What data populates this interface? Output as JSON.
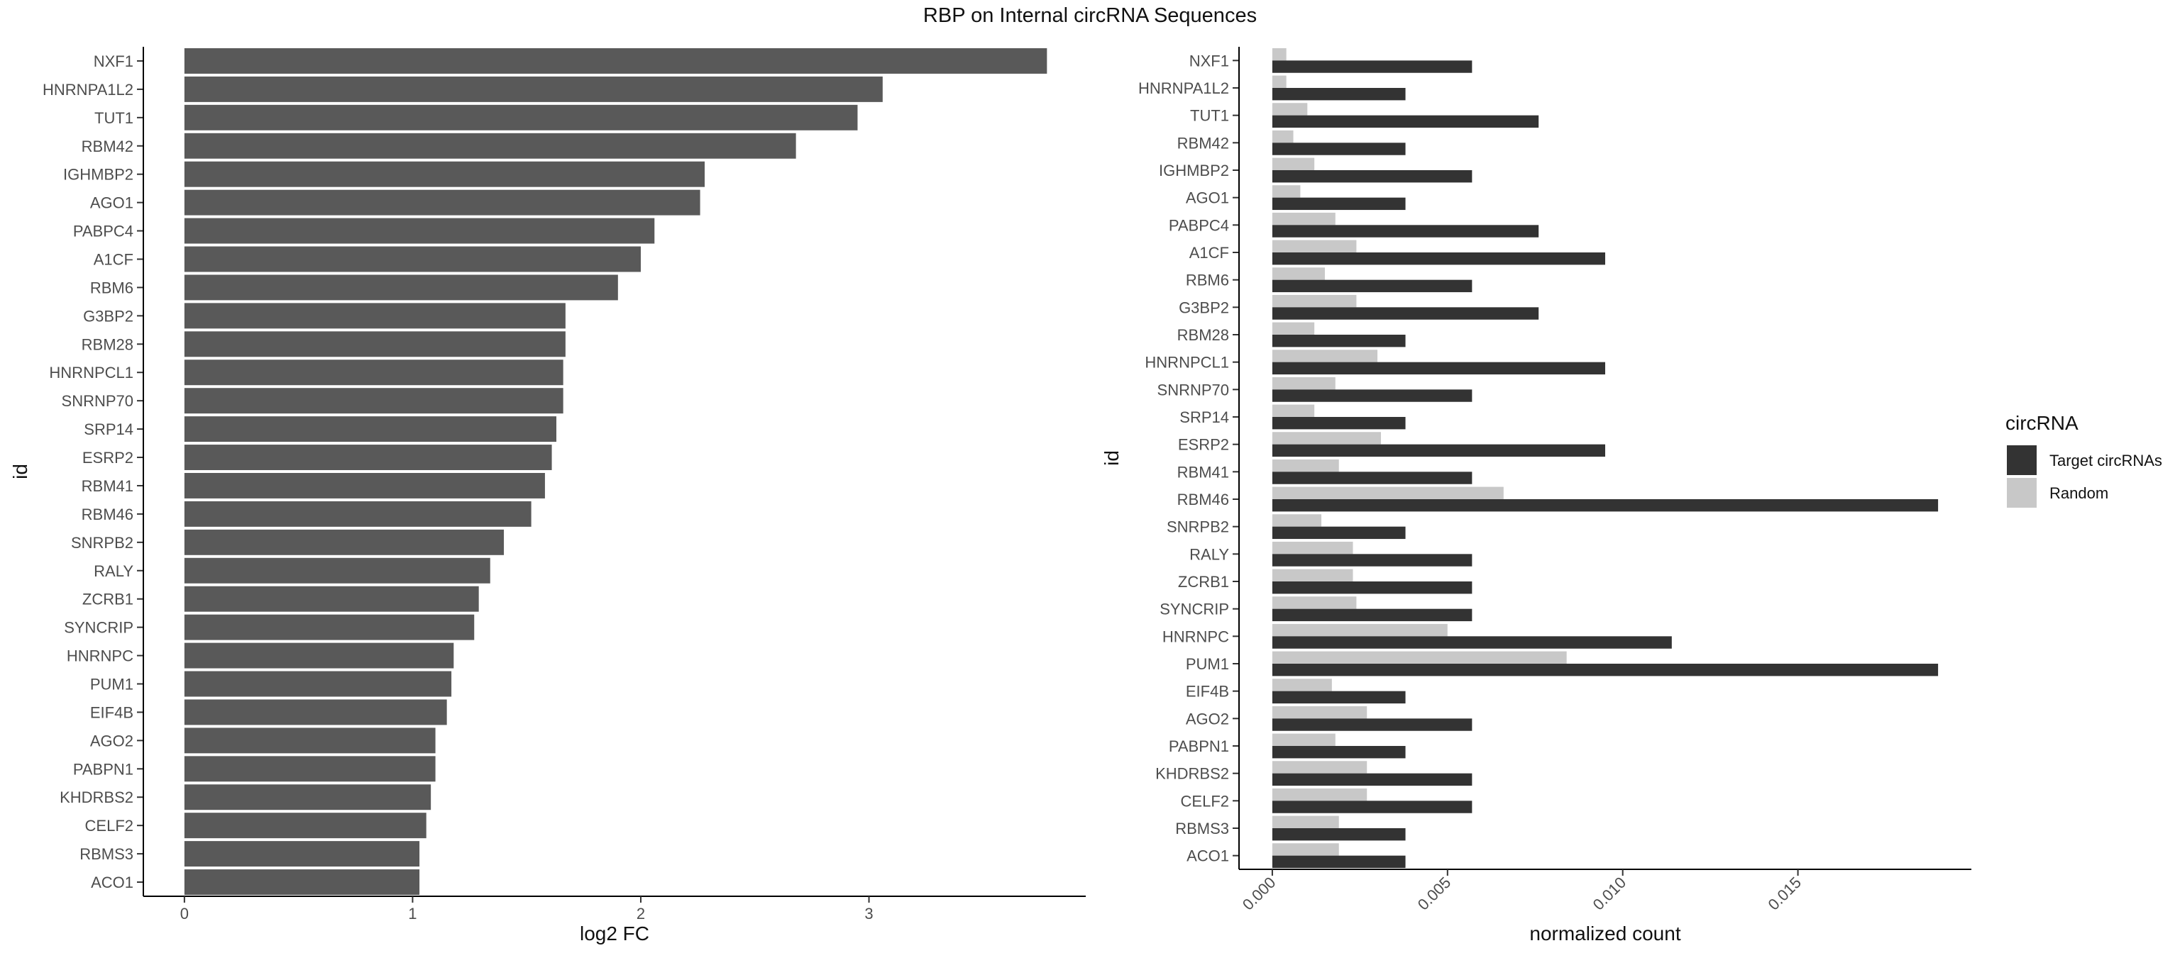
{
  "chart_data": [
    {
      "type": "bar",
      "orientation": "horizontal",
      "title": "RBP on Internal circRNA Sequences",
      "xlabel": "log2 FC",
      "ylabel": "id",
      "xlim": [
        -0.18,
        3.95
      ],
      "xticks": [
        0,
        1,
        2,
        3
      ],
      "xtick_labels": [
        "0",
        "1",
        "2",
        "3"
      ],
      "grid": false,
      "bar_color": "#595959",
      "categories": [
        "NXF1",
        "HNRNPA1L2",
        "TUT1",
        "RBM42",
        "IGHMBP2",
        "AGO1",
        "PABPC4",
        "A1CF",
        "RBM6",
        "G3BP2",
        "RBM28",
        "HNRNPCL1",
        "SNRNP70",
        "SRP14",
        "ESRP2",
        "RBM41",
        "RBM46",
        "SNRPB2",
        "RALY",
        "ZCRB1",
        "SYNCRIP",
        "HNRNPC",
        "PUM1",
        "EIF4B",
        "AGO2",
        "PABPN1",
        "KHDRBS2",
        "CELF2",
        "RBMS3",
        "ACO1"
      ],
      "values": [
        3.78,
        3.06,
        2.95,
        2.68,
        2.28,
        2.26,
        2.06,
        2.0,
        1.9,
        1.67,
        1.67,
        1.66,
        1.66,
        1.63,
        1.61,
        1.58,
        1.52,
        1.4,
        1.34,
        1.29,
        1.27,
        1.18,
        1.17,
        1.15,
        1.1,
        1.1,
        1.08,
        1.06,
        1.03,
        1.03
      ]
    },
    {
      "type": "bar",
      "orientation": "horizontal",
      "grouped": true,
      "xlabel": "normalized count",
      "ylabel": "id",
      "xlim": [
        -0.00095,
        0.01995
      ],
      "xticks": [
        0,
        0.005,
        0.01,
        0.015
      ],
      "xtick_labels": [
        "0.000",
        "0.005",
        "0.010",
        "0.015"
      ],
      "grid": false,
      "legend": {
        "title": "circRNA",
        "position": "right"
      },
      "categories": [
        "NXF1",
        "HNRNPA1L2",
        "TUT1",
        "RBM42",
        "IGHMBP2",
        "AGO1",
        "PABPC4",
        "A1CF",
        "RBM6",
        "G3BP2",
        "RBM28",
        "HNRNPCL1",
        "SNRNP70",
        "SRP14",
        "ESRP2",
        "RBM41",
        "RBM46",
        "SNRPB2",
        "RALY",
        "ZCRB1",
        "SYNCRIP",
        "HNRNPC",
        "PUM1",
        "EIF4B",
        "AGO2",
        "PABPN1",
        "KHDRBS2",
        "CELF2",
        "RBMS3",
        "ACO1"
      ],
      "series": [
        {
          "name": "Target circRNAs",
          "color": "#333333",
          "values": [
            0.0057,
            0.0038,
            0.0076,
            0.0038,
            0.0057,
            0.0038,
            0.0076,
            0.0095,
            0.0057,
            0.0076,
            0.0038,
            0.0095,
            0.0057,
            0.0038,
            0.0095,
            0.0057,
            0.019,
            0.0038,
            0.0057,
            0.0057,
            0.0057,
            0.0114,
            0.019,
            0.0038,
            0.0057,
            0.0038,
            0.0057,
            0.0057,
            0.0038,
            0.0038
          ]
        },
        {
          "name": "Random",
          "color": "#c8c8c8",
          "values": [
            0.0004,
            0.0004,
            0.001,
            0.0006,
            0.0012,
            0.0008,
            0.0018,
            0.0024,
            0.0015,
            0.0024,
            0.0012,
            0.003,
            0.0018,
            0.0012,
            0.0031,
            0.0019,
            0.0066,
            0.0014,
            0.0023,
            0.0023,
            0.0024,
            0.005,
            0.0084,
            0.0017,
            0.0027,
            0.0018,
            0.0027,
            0.0027,
            0.0019,
            0.0019
          ]
        }
      ]
    }
  ]
}
